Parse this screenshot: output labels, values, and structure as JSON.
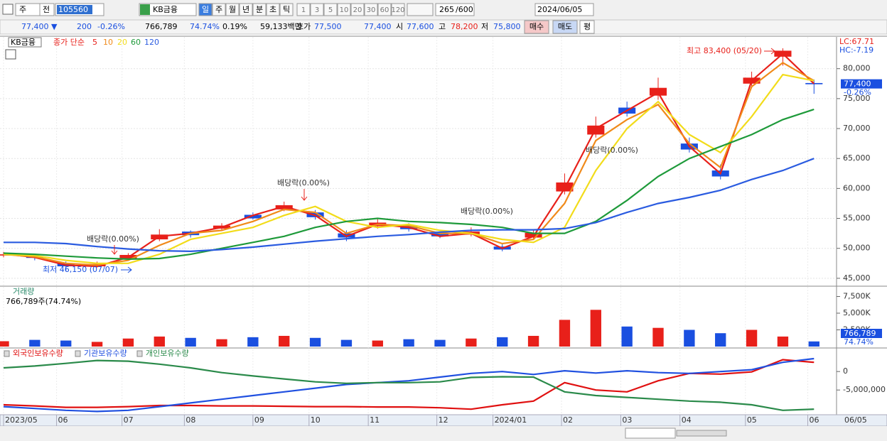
{
  "toolbar": {
    "market": "주",
    "prev": "전",
    "code": "105560",
    "name": "KB금융",
    "periods": [
      "일",
      "주",
      "월",
      "년",
      "분",
      "초",
      "틱"
    ],
    "intervals": [
      "1",
      "3",
      "5",
      "10",
      "20",
      "30",
      "60",
      "120"
    ],
    "count": "265",
    "max": "/600",
    "date": "2024/06/05"
  },
  "info_bar": {
    "price": "77,400 ▼",
    "change": "200",
    "change_pct": "-0.26%",
    "volume": "766,789",
    "volume_ratio": "74.74%",
    "turnover_pct": "0.19%",
    "amount": "59,133백만",
    "quote_label": "호가",
    "ask": "77,500",
    "bid": "77,400",
    "open_label": "시",
    "open": "77,600",
    "high_label": "고",
    "high": "78,200",
    "low_label": "저",
    "low": "75,800",
    "buy": "매수",
    "sell": "매도",
    "eval": "평"
  },
  "chart_data": [
    {
      "type": "candlestick",
      "legend": {
        "name": "KB금융",
        "ma_label": "종가 단순"
      },
      "x": [
        0,
        10,
        20,
        30,
        40,
        50,
        60,
        70,
        80,
        90,
        100,
        110,
        120,
        130,
        140,
        150,
        160,
        170,
        180,
        190,
        200,
        210,
        220,
        230,
        240,
        250,
        260
      ],
      "open": [
        48800,
        48700,
        47500,
        47000,
        48200,
        51500,
        52800,
        53300,
        55600,
        56500,
        56000,
        52500,
        53700,
        53800,
        52500,
        52300,
        50300,
        51800,
        59500,
        69000,
        73500,
        75500,
        67500,
        63000,
        77500,
        82000,
        77600
      ],
      "high": [
        49400,
        49000,
        47800,
        47800,
        49200,
        53200,
        53000,
        54200,
        56000,
        57800,
        56400,
        53000,
        55000,
        54200,
        52700,
        53500,
        50800,
        53000,
        62500,
        72000,
        74500,
        78500,
        68500,
        64000,
        79500,
        83400,
        78200
      ],
      "low": [
        48500,
        48000,
        46150,
        46800,
        48000,
        51200,
        51800,
        53000,
        54800,
        56200,
        54800,
        51200,
        53300,
        52800,
        51700,
        52000,
        49500,
        51500,
        59000,
        68500,
        72000,
        74800,
        66000,
        61500,
        76800,
        80500,
        75800
      ],
      "close": [
        49000,
        48400,
        47000,
        47400,
        48900,
        52300,
        52200,
        53800,
        55000,
        57200,
        55200,
        51800,
        54300,
        53200,
        52000,
        52800,
        49800,
        52600,
        61000,
        70500,
        72500,
        76800,
        66500,
        62000,
        78500,
        83000,
        77400
      ],
      "up_color": "#e8201a",
      "down_color": "#1a4fe0",
      "series": [
        {
          "name": "5",
          "color": "#e8201a",
          "values": [
            49100,
            48500,
            47200,
            47000,
            48500,
            52000,
            52500,
            53500,
            55500,
            57000,
            55500,
            52000,
            54000,
            53500,
            52000,
            52500,
            50000,
            52000,
            60000,
            70000,
            73000,
            76000,
            67000,
            62500,
            78000,
            82500,
            77500
          ]
        },
        {
          "name": "10",
          "color": "#f08a1a",
          "values": [
            49000,
            48600,
            47500,
            47200,
            48000,
            50500,
            52500,
            53000,
            54500,
            56500,
            56000,
            52500,
            54000,
            53800,
            52500,
            52500,
            50800,
            51500,
            57500,
            68000,
            71500,
            74000,
            67500,
            63500,
            77000,
            81000,
            78000
          ]
        },
        {
          "name": "20",
          "color": "#f2dc1a",
          "values": [
            49000,
            48800,
            48000,
            47500,
            47500,
            49000,
            51500,
            52500,
            53500,
            55500,
            57000,
            54500,
            53500,
            54000,
            53000,
            52500,
            51500,
            51000,
            53500,
            63000,
            70000,
            74500,
            69000,
            66000,
            72000,
            79000,
            78000
          ]
        },
        {
          "name": "60",
          "color": "#1e9a3a",
          "values": [
            49200,
            49000,
            48700,
            48400,
            48200,
            48300,
            49000,
            50000,
            51000,
            52000,
            53500,
            54500,
            55000,
            54500,
            54300,
            54000,
            53500,
            52500,
            52500,
            54500,
            58000,
            62000,
            65000,
            67000,
            69000,
            71500,
            73200
          ]
        },
        {
          "name": "120",
          "color": "#2a5be0",
          "values": [
            51000,
            51000,
            50800,
            50300,
            49900,
            49600,
            49500,
            49800,
            50200,
            50700,
            51200,
            51600,
            52000,
            52300,
            52700,
            53000,
            53100,
            53100,
            53300,
            54300,
            56000,
            57500,
            58500,
            59700,
            61500,
            63000,
            65000
          ]
        }
      ],
      "xlim": [
        0,
        267
      ],
      "ylim": [
        43800,
        85300
      ],
      "yticks": [
        {
          "value": 45000,
          "label": "45,000"
        },
        {
          "value": 50000,
          "label": "50,000"
        },
        {
          "value": 55000,
          "label": "55,000"
        },
        {
          "value": 60000,
          "label": "60,000"
        },
        {
          "value": 65000,
          "label": "65,000"
        },
        {
          "value": 70000,
          "label": "70,000"
        },
        {
          "value": 75000,
          "label": "75,000"
        },
        {
          "value": 80000,
          "label": "80,000"
        }
      ],
      "xticks": [
        {
          "value": 0,
          "label": "2023/05"
        },
        {
          "value": 17,
          "label": "06"
        },
        {
          "value": 38,
          "label": "07"
        },
        {
          "value": 58,
          "label": "08"
        },
        {
          "value": 80,
          "label": "09"
        },
        {
          "value": 98,
          "label": "10"
        },
        {
          "value": 117,
          "label": "11"
        },
        {
          "value": 139,
          "label": "12"
        },
        {
          "value": 157,
          "label": "2024/01"
        },
        {
          "value": 179,
          "label": "02"
        },
        {
          "value": 198,
          "label": "03"
        },
        {
          "value": 217,
          "label": "04"
        },
        {
          "value": 238,
          "label": "05"
        },
        {
          "value": 258,
          "label": "06"
        }
      ],
      "end_date": "06/05",
      "grid": true,
      "annotations": {
        "high": "최고 83,400 (05/20)",
        "low": "최저 46,150 (07/07)",
        "dividends": [
          "배당락(0.00%)",
          "배당락(0.00%)",
          "배당락(0.00%)",
          "배당락(0.00%)"
        ],
        "lc": "LC:67.71",
        "hc": "HC:-7.19",
        "last": "77,400",
        "last_change": "-0.26%"
      }
    },
    {
      "type": "bar",
      "title": "거래량",
      "subtitle": "766,789주(74.74%)",
      "x": [
        0,
        10,
        20,
        30,
        40,
        50,
        60,
        70,
        80,
        90,
        100,
        110,
        120,
        130,
        140,
        150,
        160,
        170,
        180,
        190,
        200,
        210,
        220,
        230,
        240,
        250,
        260
      ],
      "values": [
        800000,
        1000000,
        900000,
        700000,
        1200000,
        1500000,
        1300000,
        1100000,
        1400000,
        1600000,
        1300000,
        1000000,
        900000,
        1100000,
        1000000,
        1200000,
        1400000,
        1600000,
        4000000,
        5500000,
        3000000,
        2800000,
        2500000,
        2000000,
        2500000,
        1500000,
        766789
      ],
      "ylim": [
        0,
        8830000
      ],
      "yticks": [
        {
          "value": 2500000,
          "label": "2,500K"
        },
        {
          "value": 5000000,
          "label": "5,000K"
        },
        {
          "value": 7500000,
          "label": "7,500K"
        }
      ],
      "last_label": "766,789",
      "last_ratio": "74.74%"
    },
    {
      "type": "line",
      "x": [
        0,
        10,
        20,
        30,
        40,
        50,
        60,
        70,
        80,
        90,
        100,
        110,
        120,
        130,
        140,
        150,
        160,
        170,
        180,
        190,
        200,
        210,
        220,
        230,
        240,
        250,
        260
      ],
      "series": [
        {
          "name": "외국인보유수량",
          "color": "#e01010",
          "values": [
            -9000000,
            -9300000,
            -9700000,
            -9700000,
            -9500000,
            -9200000,
            -9200000,
            -9300000,
            -9300000,
            -9400000,
            -9500000,
            -9500000,
            -9600000,
            -9600000,
            -9800000,
            -10200000,
            -9000000,
            -8000000,
            -3000000,
            -5000000,
            -5500000,
            -2500000,
            -500000,
            -700000,
            -100000,
            3200000,
            2500000
          ]
        },
        {
          "name": "기관보유수량",
          "color": "#2050e0",
          "values": [
            -9500000,
            -10000000,
            -10500000,
            -10800000,
            -10500000,
            -9500000,
            -8500000,
            -7500000,
            -6500000,
            -5500000,
            -4500000,
            -3500000,
            -3000000,
            -2500000,
            -1500000,
            -500000,
            0,
            -800000,
            200000,
            -400000,
            200000,
            -300000,
            -500000,
            0,
            500000,
            2500000,
            3500000
          ]
        },
        {
          "name": "개인보유수량",
          "color": "#2a8a4a",
          "values": [
            1000000,
            1500000,
            2200000,
            3000000,
            2800000,
            2000000,
            1000000,
            -300000,
            -1200000,
            -2000000,
            -2800000,
            -3200000,
            -3000000,
            -3000000,
            -2800000,
            -1600000,
            -1400000,
            -1500000,
            -5500000,
            -6500000,
            -7000000,
            -7500000,
            -8000000,
            -8300000,
            -9000000,
            -10500000,
            -10200000
          ]
        }
      ],
      "ylim": [
        -11500000,
        5800000
      ],
      "yticks": [
        0,
        {
          "value": -5000000,
          "label": "-5,000,000"
        }
      ]
    }
  ]
}
